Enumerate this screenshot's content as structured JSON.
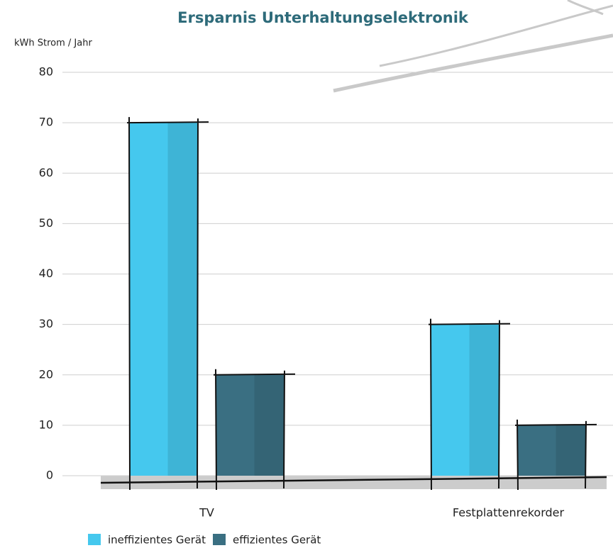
{
  "chart_data": {
    "type": "bar",
    "title": "Ersparnis Unterhaltungselektronik",
    "y_axis_label": "kWh Strom / Jahr",
    "categories": [
      "TV",
      "Festplattenrekorder"
    ],
    "series": [
      {
        "name": "ineffizientes Gerät",
        "color": "#45c8ee",
        "values": [
          70,
          30
        ]
      },
      {
        "name": "effizientes Gerät",
        "color": "#3a6f82",
        "values": [
          20,
          10
        ]
      }
    ],
    "ylim": [
      0,
      80
    ],
    "yticks": [
      0,
      10,
      20,
      30,
      40,
      50,
      60,
      70,
      80
    ],
    "grid": true,
    "legend": "bottom"
  }
}
